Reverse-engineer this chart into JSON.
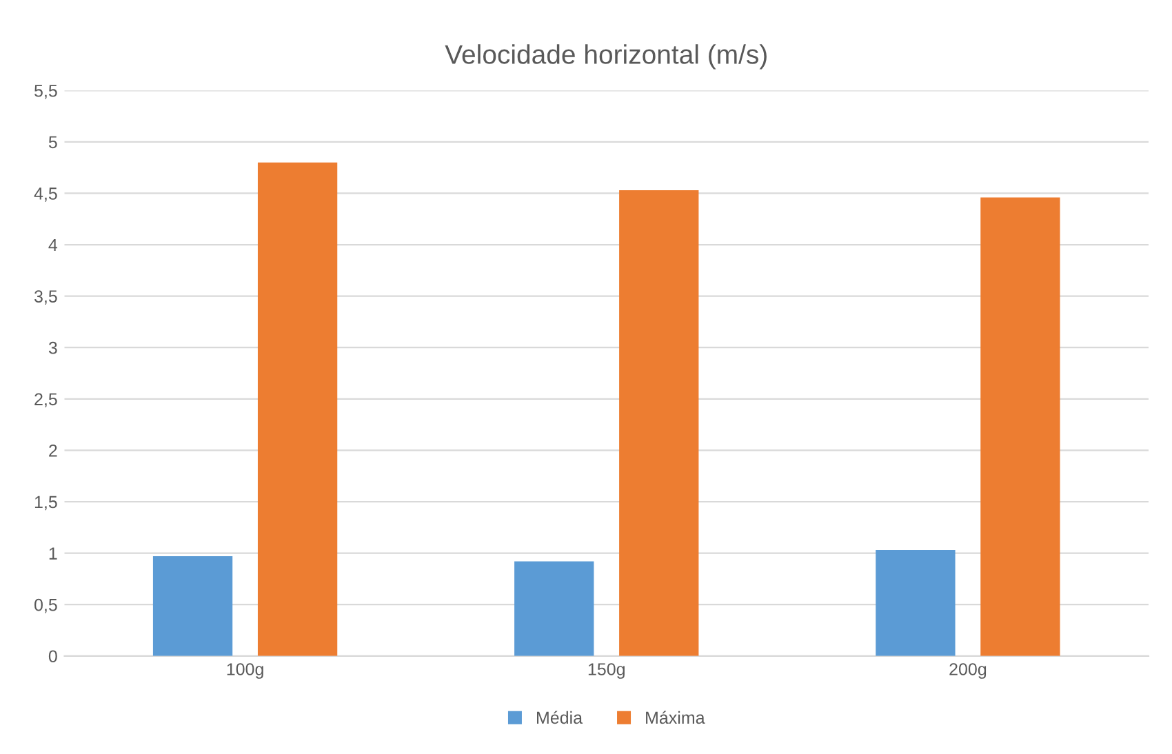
{
  "chart_data": {
    "type": "bar",
    "title": "Velocidade horizontal (m/s)",
    "categories": [
      "100g",
      "150g",
      "200g"
    ],
    "series": [
      {
        "name": "Média",
        "color": "#5b9bd5",
        "values": [
          0.97,
          0.92,
          1.03
        ]
      },
      {
        "name": "Máxima",
        "color": "#ed7d31",
        "values": [
          4.8,
          4.53,
          4.46
        ]
      }
    ],
    "ylim": [
      0,
      5.5
    ],
    "yticks": [
      0,
      {
        "value": 0.5,
        "label": "0,5"
      },
      1,
      {
        "value": 1.5,
        "label": "1,5"
      },
      2,
      {
        "value": 2.5,
        "label": "2,5"
      },
      3,
      {
        "value": 3.5,
        "label": "3,5"
      },
      4,
      {
        "value": 4.5,
        "label": "4,5"
      },
      5,
      {
        "value": 5.5,
        "label": "5,5"
      }
    ],
    "grid": "y",
    "legend": "bottom"
  }
}
